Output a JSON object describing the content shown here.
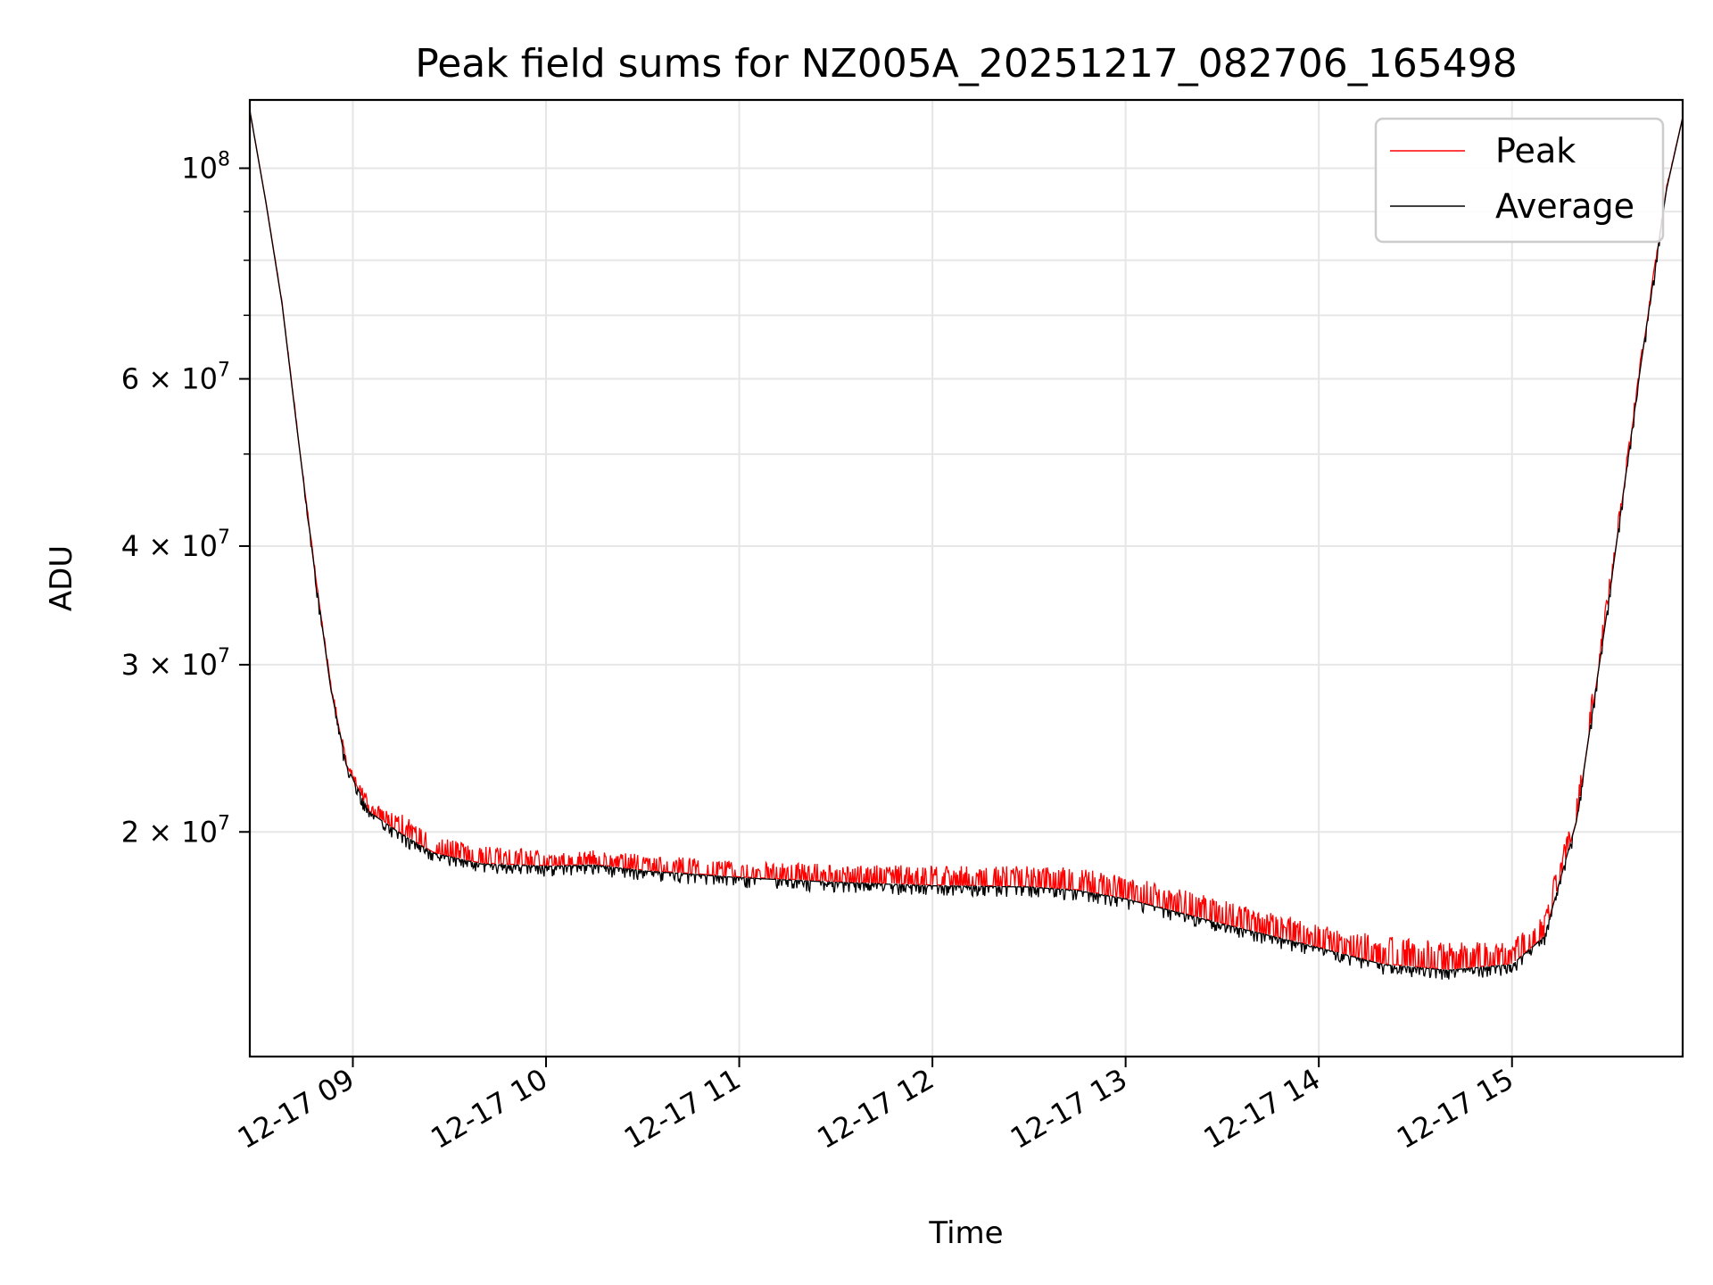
{
  "chart_data": {
    "type": "line",
    "title": "Peak field sums for NZ005A_20251217_082706_165498",
    "xlabel": "Time",
    "ylabel": "ADU",
    "y_scale": "log",
    "ylim": [
      11600000,
      118000000
    ],
    "xlim": [
      "2025-12-17T08:28",
      "2025-12-17T15:53"
    ],
    "grid": true,
    "legend_position": "top-right",
    "x_tick_labels": [
      {
        "t": "2025-12-17T09:00",
        "label": "12-17 09"
      },
      {
        "t": "2025-12-17T10:00",
        "label": "12-17 10"
      },
      {
        "t": "2025-12-17T11:00",
        "label": "12-17 11"
      },
      {
        "t": "2025-12-17T12:00",
        "label": "12-17 12"
      },
      {
        "t": "2025-12-17T13:00",
        "label": "12-17 13"
      },
      {
        "t": "2025-12-17T14:00",
        "label": "12-17 14"
      },
      {
        "t": "2025-12-17T15:00",
        "label": "12-17 15"
      }
    ],
    "y_major_ticks": [
      {
        "value": 100000000,
        "base": "10",
        "exp": "8"
      },
      {
        "value": 60000000,
        "base": "6 × 10",
        "exp": "7"
      },
      {
        "value": 40000000,
        "base": "4 × 10",
        "exp": "7"
      },
      {
        "value": 30000000,
        "base": "3 × 10",
        "exp": "7"
      },
      {
        "value": 20000000,
        "base": "2 × 10",
        "exp": "7"
      }
    ],
    "y_minor_ticks": [
      90000000,
      80000000,
      70000000,
      50000000
    ],
    "series": [
      {
        "name": "Average",
        "color": "#000000",
        "dip_amplitude": 0.025,
        "points": [
          [
            "2025-12-17T08:28",
            115000000
          ],
          [
            "2025-12-17T08:33",
            92000000
          ],
          [
            "2025-12-17T08:38",
            72000000
          ],
          [
            "2025-12-17T08:43",
            52000000
          ],
          [
            "2025-12-17T08:48",
            38000000
          ],
          [
            "2025-12-17T08:53",
            28500000
          ],
          [
            "2025-12-17T08:58",
            23500000
          ],
          [
            "2025-12-17T09:05",
            21000000
          ],
          [
            "2025-12-17T09:15",
            19900000
          ],
          [
            "2025-12-17T09:25",
            19000000
          ],
          [
            "2025-12-17T09:40",
            18500000
          ],
          [
            "2025-12-17T10:00",
            18400000
          ],
          [
            "2025-12-17T10:15",
            18450000
          ],
          [
            "2025-12-17T10:30",
            18200000
          ],
          [
            "2025-12-17T11:00",
            17900000
          ],
          [
            "2025-12-17T11:30",
            17700000
          ],
          [
            "2025-12-17T12:00",
            17550000
          ],
          [
            "2025-12-17T12:30",
            17500000
          ],
          [
            "2025-12-17T12:45",
            17350000
          ],
          [
            "2025-12-17T13:00",
            17000000
          ],
          [
            "2025-12-17T13:30",
            16000000
          ],
          [
            "2025-12-17T14:00",
            15100000
          ],
          [
            "2025-12-17T14:20",
            14500000
          ],
          [
            "2025-12-17T14:40",
            14300000
          ],
          [
            "2025-12-17T15:00",
            14500000
          ],
          [
            "2025-12-17T15:10",
            15500000
          ],
          [
            "2025-12-17T15:20",
            20500000
          ],
          [
            "2025-12-17T15:30",
            35000000
          ],
          [
            "2025-12-17T15:40",
            62000000
          ],
          [
            "2025-12-17T15:48",
            95000000
          ],
          [
            "2025-12-17T15:53",
            113000000
          ]
        ]
      },
      {
        "name": "Peak",
        "color": "#ff0000",
        "spike_amplitude": [
          [
            "2025-12-17T08:28",
            0.0
          ],
          [
            "2025-12-17T09:00",
            0.02
          ],
          [
            "2025-12-17T09:15",
            0.05
          ],
          [
            "2025-12-17T10:00",
            0.04
          ],
          [
            "2025-12-17T11:00",
            0.04
          ],
          [
            "2025-12-17T12:00",
            0.05
          ],
          [
            "2025-12-17T13:00",
            0.06
          ],
          [
            "2025-12-17T14:00",
            0.06
          ],
          [
            "2025-12-17T14:30",
            0.075
          ],
          [
            "2025-12-17T15:00",
            0.06
          ],
          [
            "2025-12-17T15:20",
            0.06
          ],
          [
            "2025-12-17T15:35",
            0.03
          ],
          [
            "2025-12-17T15:53",
            0.0
          ]
        ]
      }
    ]
  }
}
